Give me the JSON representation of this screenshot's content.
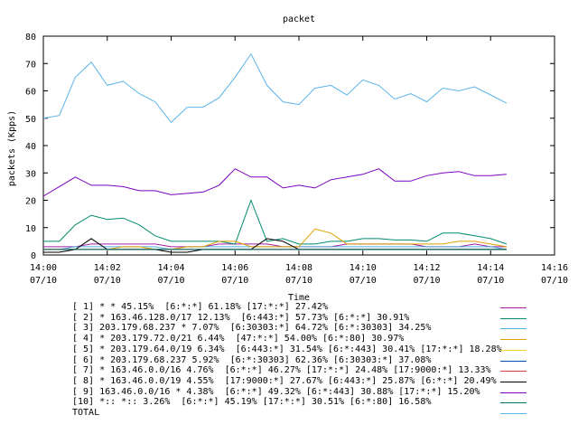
{
  "chart_data": {
    "type": "line",
    "title": "packet",
    "xlabel": "Time",
    "ylabel": "packets (Kpps)",
    "ylim": [
      0,
      80
    ],
    "yticks": [
      0,
      10,
      20,
      30,
      40,
      50,
      60,
      70,
      80
    ],
    "xlim": [
      "14:00",
      "14:16"
    ],
    "xticks": [
      {
        "time": "14:00",
        "date": "07/10"
      },
      {
        "time": "14:02",
        "date": "07/10"
      },
      {
        "time": "14:04",
        "date": "07/10"
      },
      {
        "time": "14:06",
        "date": "07/10"
      },
      {
        "time": "14:08",
        "date": "07/10"
      },
      {
        "time": "14:10",
        "date": "07/10"
      },
      {
        "time": "14:12",
        "date": "07/10"
      },
      {
        "time": "14:14",
        "date": "07/10"
      },
      {
        "time": "14:16",
        "date": "07/10"
      }
    ],
    "x": [
      "14:00:00",
      "14:00:30",
      "14:01:00",
      "14:01:30",
      "14:02:00",
      "14:02:30",
      "14:03:00",
      "14:03:30",
      "14:04:00",
      "14:04:30",
      "14:05:00",
      "14:05:30",
      "14:06:00",
      "14:06:30",
      "14:07:00",
      "14:07:30",
      "14:08:00",
      "14:08:30",
      "14:09:00",
      "14:09:30",
      "14:10:00",
      "14:10:30",
      "14:11:00",
      "14:11:30",
      "14:12:00",
      "14:12:30",
      "14:13:00",
      "14:13:30",
      "14:14:00",
      "14:14:30"
    ],
    "grid": false,
    "legend_position": "bottom",
    "series": [
      {
        "name": "[ 1] * * 45.15%  [6:*:*] 61.18% [17:*:*] 27.42%",
        "color": "#a020a0",
        "values": [
          3,
          3,
          3,
          4,
          4,
          4,
          4,
          4,
          3,
          3,
          3,
          4,
          4,
          4,
          4,
          3,
          3,
          3,
          3,
          4,
          4,
          4,
          4,
          4,
          3,
          3,
          3,
          4,
          3,
          3
        ]
      },
      {
        "name": "[ 2] * 163.46.128.0/17 12.13%  [6:443:*] 57.73% [6:*:*] 30.91%",
        "color": "#008a6e",
        "values": [
          5,
          5,
          11,
          14.5,
          13,
          13.5,
          11,
          7,
          5,
          5,
          5,
          5,
          4,
          20,
          5,
          6,
          4,
          4,
          5,
          5,
          6,
          6,
          5.5,
          5.5,
          5,
          8,
          8,
          7,
          6,
          4
        ]
      },
      {
        "name": "[ 3] 203.179.68.237 * 7.07%  [6:30303:*] 64.72% [6:*:30303] 34.25%",
        "color": "#50b0e0",
        "values": [
          2,
          2,
          3,
          3,
          3,
          3,
          3,
          3,
          2,
          3,
          3,
          3,
          3,
          3,
          3,
          3,
          3,
          3,
          3,
          3,
          3,
          3,
          3,
          3,
          3,
          3,
          3,
          3,
          3,
          2
        ]
      },
      {
        "name": "[ 4] * 203.179.72.0/21 6.44%  [47:*:*] 54.00% [6:*:80] 30.97%",
        "color": "#e0a000",
        "values": [
          2,
          2,
          2,
          2,
          2,
          3,
          3,
          2,
          2,
          3,
          3,
          5,
          5,
          3,
          3,
          3,
          3,
          9.5,
          8,
          4,
          4,
          4,
          4,
          4,
          4,
          4,
          5,
          5,
          4,
          3
        ]
      },
      {
        "name": "[ 5] * 203.179.64.0/19 6.34%  [6:443:*] 31.54% [6:*:443] 30.41% [17:*:*] 18.28%",
        "color": "#f0d020",
        "values": [
          2,
          2,
          2,
          2,
          2,
          2,
          2,
          2,
          2,
          2,
          2,
          2,
          2,
          2,
          2,
          2,
          2,
          2,
          2,
          2,
          2,
          2,
          2,
          2,
          2,
          2,
          2,
          2,
          2,
          2
        ]
      },
      {
        "name": "[ 6] * 203.179.68.237 5.92%  [6:*:30303] 62.36% [6:30303:*] 37.08%",
        "color": "#0050b0",
        "values": [
          2,
          2,
          2,
          2,
          2,
          2,
          2,
          2,
          2,
          2,
          2,
          2,
          2,
          2,
          2,
          2,
          2,
          2,
          2,
          2,
          2,
          2,
          2,
          2,
          2,
          2,
          2,
          2,
          2,
          2
        ]
      },
      {
        "name": "[ 7] * 163.46.0.0/16 4.76%  [6:*:*] 46.27% [17:*:*] 24.48% [17:9000:*] 13.33%",
        "color": "#d04040",
        "values": [
          2,
          2,
          2,
          2,
          2,
          2,
          2,
          2,
          2,
          2,
          2,
          2,
          2,
          2,
          2,
          2,
          2,
          2,
          2,
          2,
          2,
          2,
          2,
          2,
          2,
          2,
          2,
          2,
          2,
          2
        ]
      },
      {
        "name": "[ 8] * 163.46.0.0/19 4.55%  [17:9000:*] 27.67% [6:443:*] 25.87% [6:*:*] 20.49%",
        "color": "#000000",
        "values": [
          1,
          1,
          2,
          6,
          2,
          2,
          2,
          2,
          1,
          1,
          2,
          2,
          2,
          2,
          6,
          5,
          2,
          2,
          2,
          2,
          2,
          2,
          2,
          2,
          2,
          2,
          2,
          2,
          2,
          2
        ]
      },
      {
        "name": "[ 9] 163.46.0.0/16 * 4.38%  [6:*:*] 49.32% [6:*:443] 30.88% [17:*:*] 15.20%",
        "color": "#7a00c0",
        "values": [
          21.5,
          25,
          28.5,
          25.5,
          25.5,
          25,
          23.5,
          23.5,
          22,
          22.5,
          23,
          25.5,
          31.5,
          28.5,
          28.5,
          24.5,
          25.5,
          24.5,
          27.5,
          28.5,
          29.5,
          31.5,
          27,
          27,
          29,
          30,
          30.5,
          29,
          29,
          29.5
        ]
      },
      {
        "name": "[10] *:: *:: 3.26%  [6:*:*] 45.19% [17:*:*] 30.51% [6:*:80] 16.58%",
        "color": "#00706a",
        "values": [
          2,
          2,
          2,
          2,
          2,
          2,
          2,
          2,
          2,
          2,
          2,
          2,
          2,
          2,
          2,
          2,
          2,
          2,
          2,
          2,
          2,
          2,
          2,
          2,
          2,
          2,
          2,
          2,
          2,
          2
        ]
      },
      {
        "name": "TOTAL",
        "color": "#5ab4ea",
        "values": [
          50,
          51,
          65,
          70.5,
          62,
          63.5,
          59,
          56,
          48.5,
          54,
          54,
          57.5,
          65,
          73.5,
          62,
          56,
          55,
          61,
          62,
          58.5,
          64,
          62,
          57,
          59,
          56,
          61,
          60,
          61.5,
          58.5,
          55.5
        ]
      }
    ]
  }
}
